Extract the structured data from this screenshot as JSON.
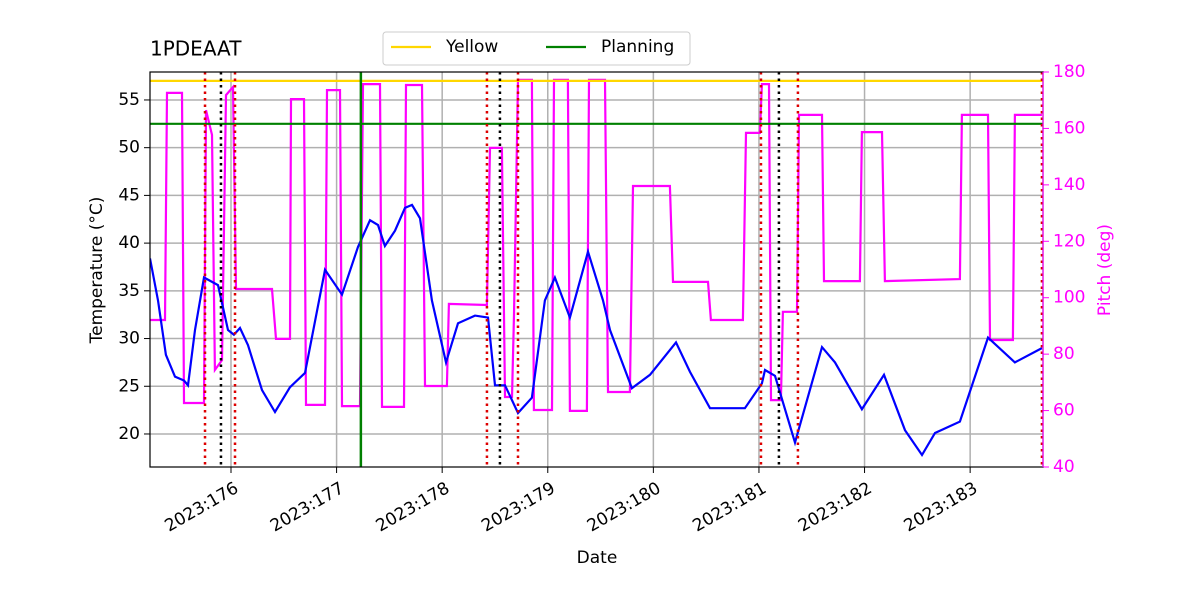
{
  "chart_data": {
    "type": "line",
    "title": "1PDEAAT",
    "xlabel": "Date",
    "ylabel": "Temperature (°C)",
    "y2label": "Pitch (deg)",
    "xlim": [
      175.233,
      183.69
    ],
    "xticks": [
      {
        "value": 176,
        "label": "2023:176"
      },
      {
        "value": 177,
        "label": "2023:177"
      },
      {
        "value": 178,
        "label": "2023:178"
      },
      {
        "value": 179,
        "label": "2023:179"
      },
      {
        "value": 180,
        "label": "2023:180"
      },
      {
        "value": 181,
        "label": "2023:181"
      },
      {
        "value": 182,
        "label": "2023:182"
      },
      {
        "value": 183,
        "label": "2023:183"
      }
    ],
    "ylim": [
      16.54,
      57.93
    ],
    "yticks": [
      20,
      25,
      30,
      35,
      40,
      45,
      50,
      55
    ],
    "y2lim": [
      40,
      180
    ],
    "y2ticks": [
      40,
      60,
      80,
      100,
      120,
      140,
      160,
      180
    ],
    "y2color": "#ff00ff",
    "grid": true,
    "legend": "upper center",
    "series": [
      {
        "color": "#0000ff",
        "x": [
          175.233,
          175.309,
          175.384,
          175.47,
          175.555,
          175.593,
          175.659,
          175.744,
          175.877,
          175.972,
          176.028,
          176.085,
          176.161,
          176.294,
          176.417,
          176.559,
          176.701,
          176.89,
          177.051,
          177.203,
          177.316,
          177.392,
          177.458,
          177.553,
          177.648,
          177.714,
          177.79,
          177.903,
          178.036,
          178.15,
          178.311,
          178.434,
          178.5,
          178.595,
          178.718,
          178.85,
          178.973,
          179.068,
          179.21,
          179.381,
          179.523,
          179.589,
          179.797,
          179.968,
          180.214,
          180.347,
          180.536,
          180.867,
          181.028,
          181.057,
          181.152,
          181.341,
          181.597,
          181.72,
          181.975,
          182.184,
          182.383,
          182.544,
          182.667,
          182.903,
          183.169,
          183.424,
          183.68
        ],
        "values": [
          38.4,
          34.0,
          28.3,
          26.0,
          25.6,
          25.1,
          30.9,
          36.4,
          35.6,
          30.9,
          30.4,
          31.1,
          29.3,
          24.6,
          22.3,
          24.9,
          26.4,
          37.2,
          34.6,
          39.6,
          42.4,
          41.9,
          39.7,
          41.3,
          43.7,
          44.0,
          42.6,
          34.0,
          27.5,
          31.6,
          32.4,
          32.2,
          25.1,
          25.1,
          22.2,
          23.8,
          34.0,
          36.4,
          32.2,
          39.1,
          34.0,
          30.9,
          24.8,
          26.2,
          29.6,
          26.5,
          22.7,
          22.7,
          25.3,
          26.7,
          26.1,
          19.1,
          29.1,
          27.5,
          22.6,
          26.2,
          20.4,
          17.8,
          20.1,
          21.3,
          30.1,
          27.5,
          29.0
        ]
      },
      {
        "color": "#ff00ff",
        "axis": "y2",
        "x": [
          175.233,
          175.375,
          175.394,
          175.536,
          175.555,
          175.744,
          175.763,
          175.82,
          175.848,
          175.915,
          175.953,
          176.019,
          176.047,
          176.388,
          176.426,
          176.559,
          176.568,
          176.691,
          176.71,
          176.89,
          176.909,
          177.032,
          177.051,
          177.222,
          177.25,
          177.411,
          177.43,
          177.638,
          177.657,
          177.809,
          177.837,
          178.045,
          178.064,
          178.424,
          178.453,
          178.566,
          178.595,
          178.661,
          178.68,
          178.718,
          178.85,
          178.869,
          179.04,
          179.059,
          179.191,
          179.21,
          179.371,
          179.39,
          179.542,
          179.57,
          179.778,
          179.807,
          180.157,
          180.186,
          180.517,
          180.545,
          180.848,
          180.877,
          181.009,
          181.028,
          181.095,
          181.114,
          181.208,
          181.227,
          181.36,
          181.379,
          181.597,
          181.616,
          181.956,
          181.975,
          182.165,
          182.193,
          182.903,
          182.922,
          183.169,
          183.188,
          183.405,
          183.424,
          183.68
        ],
        "values": [
          92.1,
          92.1,
          172.6,
          172.6,
          62.7,
          62.7,
          166.5,
          157.7,
          74.4,
          77.9,
          171.8,
          174.7,
          103.1,
          103.1,
          85.4,
          85.4,
          170.4,
          170.4,
          62.0,
          62.0,
          173.6,
          173.6,
          61.6,
          61.6,
          175.7,
          175.7,
          61.3,
          61.3,
          175.4,
          175.4,
          68.7,
          68.7,
          97.8,
          97.4,
          153.1,
          153.1,
          64.8,
          64.8,
          93.9,
          177.2,
          177.2,
          60.2,
          60.2,
          177.2,
          177.2,
          59.9,
          59.9,
          177.2,
          177.2,
          66.6,
          66.6,
          139.6,
          139.6,
          105.6,
          105.6,
          92.1,
          92.1,
          158.4,
          158.4,
          175.7,
          175.7,
          63.7,
          63.7,
          95.0,
          95.0,
          164.8,
          164.8,
          105.9,
          105.9,
          158.7,
          158.7,
          105.9,
          106.6,
          164.8,
          164.8,
          85.0,
          85.0,
          164.8,
          164.8
        ]
      }
    ],
    "hlines": [
      {
        "name": "Yellow",
        "value": 57,
        "color": "#ffd700"
      },
      {
        "name": "Planning",
        "value": 52.5,
        "color": "#008000"
      }
    ],
    "vlines": [
      {
        "x": 177.23,
        "color": "#008000",
        "style": "solid"
      },
      {
        "x": 175.754,
        "color": "#dd0000",
        "style": "dotted"
      },
      {
        "x": 176.038,
        "color": "#dd0000",
        "style": "dotted"
      },
      {
        "x": 178.424,
        "color": "#dd0000",
        "style": "dotted"
      },
      {
        "x": 178.718,
        "color": "#dd0000",
        "style": "dotted"
      },
      {
        "x": 181.019,
        "color": "#dd0000",
        "style": "dotted"
      },
      {
        "x": 181.369,
        "color": "#dd0000",
        "style": "dotted"
      },
      {
        "x": 183.68,
        "color": "#dd0000",
        "style": "dotted"
      },
      {
        "x": 175.905,
        "color": "#000000",
        "style": "dotted"
      },
      {
        "x": 178.547,
        "color": "#000000",
        "style": "dotted"
      },
      {
        "x": 181.189,
        "color": "#000000",
        "style": "dotted"
      }
    ]
  }
}
